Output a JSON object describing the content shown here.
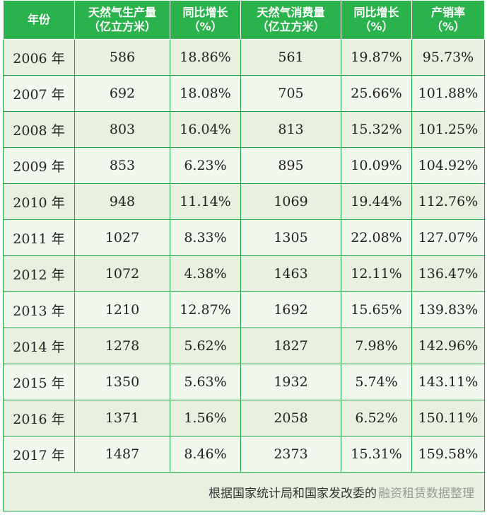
{
  "headers": [
    {
      "line1": "年份",
      "line2": ""
    },
    {
      "line1": "天然气生产量",
      "line2": "（亿立方米）"
    },
    {
      "line1": "同比增长",
      "line2": "（%）"
    },
    {
      "line1": "天然气消费量",
      "line2": "（亿立方米）"
    },
    {
      "line1": "同比增长",
      "line2": "（%）"
    },
    {
      "line1": "产销率",
      "line2": "（%）"
    }
  ],
  "rows": [
    [
      "2006 年",
      "586",
      "18.86%",
      "561",
      "19.87%",
      "95.73%"
    ],
    [
      "2007 年",
      "692",
      "18.08%",
      "705",
      "25.66%",
      "101.88%"
    ],
    [
      "2008 年",
      "803",
      "16.04%",
      "813",
      "15.32%",
      "101.25%"
    ],
    [
      "2009 年",
      "853",
      "6.23%",
      "895",
      "10.09%",
      "104.92%"
    ],
    [
      "2010 年",
      "948",
      "11.14%",
      "1069",
      "19.44%",
      "112.76%"
    ],
    [
      "2011 年",
      "1027",
      "8.33%",
      "1305",
      "22.08%",
      "127.07%"
    ],
    [
      "2012 年",
      "1072",
      "4.38%",
      "1463",
      "12.11%",
      "136.47%"
    ],
    [
      "2013 年",
      "1210",
      "12.87%",
      "1692",
      "15.65%",
      "139.83%"
    ],
    [
      "2014 年",
      "1278",
      "5.62%",
      "1827",
      "7.98%",
      "142.96%"
    ],
    [
      "2015 年",
      "1350",
      "5.63%",
      "1932",
      "5.74%",
      "143.11%"
    ],
    [
      "2016 年",
      "1371",
      "1.56%",
      "2058",
      "6.52%",
      "150.11%"
    ],
    [
      "2017 年",
      "1487",
      "8.46%",
      "2373",
      "15.31%",
      "159.58%"
    ]
  ],
  "footer": {
    "source": "根据国家统计局和国家发改委的",
    "watermark": "融资租赁数据整理"
  },
  "colors": {
    "header_bg": "#2ab24c",
    "row_odd": "#e8f1df",
    "row_even": "#f3f8ee",
    "border": "#1ca447"
  }
}
